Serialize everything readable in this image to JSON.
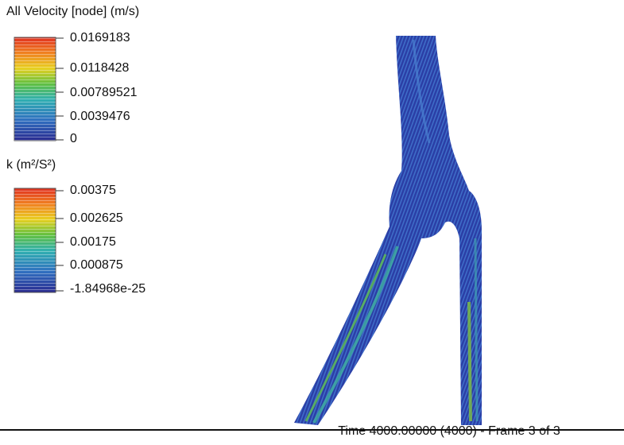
{
  "legends": [
    {
      "title": "All Velocity [node] (m/s)",
      "ticks": [
        "0.0169183",
        "0.0118428",
        "0.00789521",
        "0.0039476",
        "0"
      ]
    },
    {
      "title": "k (m²/S²)",
      "ticks": [
        "0.00375",
        "0.002625",
        "0.00175",
        "0.000875",
        "-1.84968e-25"
      ]
    }
  ],
  "footer": "Time 4000.00000 (4000) - Frame 3 of 3"
}
